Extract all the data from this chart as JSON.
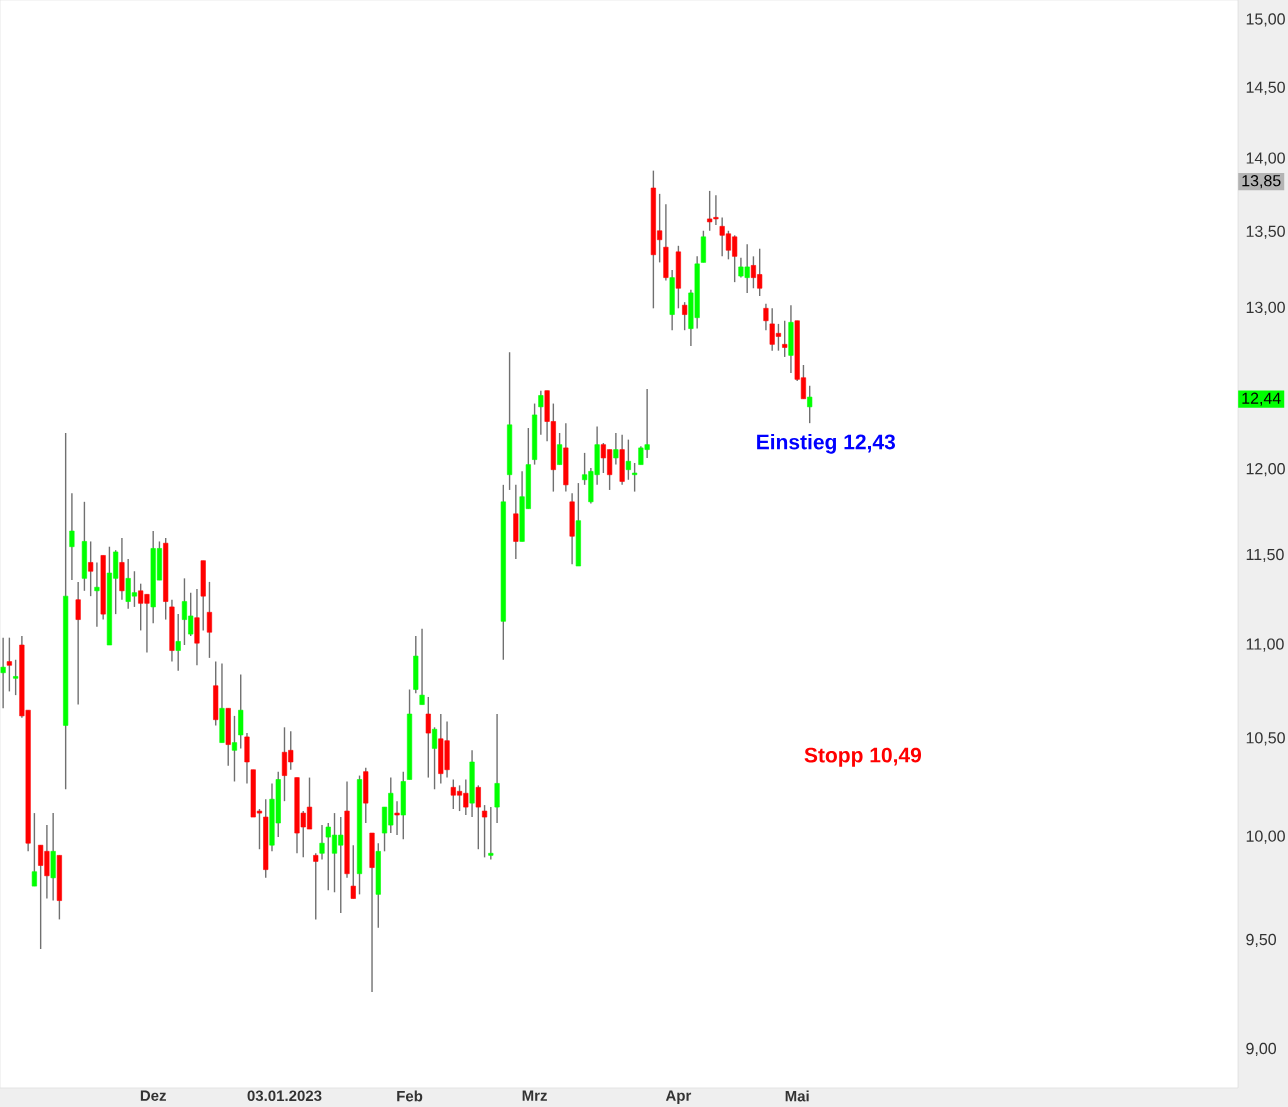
{
  "chart_data": {
    "type": "candlestick",
    "categories": [
      null,
      null,
      null,
      null,
      null,
      null,
      null,
      null,
      null,
      null,
      null,
      null,
      null,
      null,
      null,
      null,
      null,
      null,
      null,
      null,
      null,
      null,
      null,
      null,
      "Dez",
      null,
      null,
      null,
      null,
      null,
      null,
      null,
      null,
      null,
      null,
      null,
      null,
      null,
      null,
      null,
      null,
      null,
      null,
      null,
      null,
      "03.01.2023",
      null,
      null,
      null,
      null,
      null,
      null,
      null,
      null,
      null,
      null,
      null,
      null,
      null,
      null,
      null,
      null,
      null,
      null,
      null,
      "Feb",
      null,
      null,
      null,
      null,
      null,
      null,
      null,
      null,
      null,
      null,
      null,
      null,
      null,
      null,
      null,
      null,
      null,
      null,
      null,
      "Mrz",
      null,
      null,
      null,
      null,
      null,
      null,
      null,
      null,
      null,
      null,
      null,
      null,
      null,
      null,
      null,
      null,
      null,
      null,
      null,
      null,
      null,
      null,
      "Apr",
      null,
      null,
      null,
      null,
      null,
      null,
      null,
      null,
      null,
      null,
      null,
      null,
      null,
      null,
      null,
      null,
      null,
      null,
      "Mai",
      null,
      null,
      null,
      null,
      null,
      null,
      null,
      null,
      null,
      null,
      null,
      null,
      null,
      null,
      null,
      null,
      null,
      null,
      null,
      null,
      null,
      null,
      null,
      null,
      null,
      null,
      null,
      null,
      null,
      null,
      null,
      null,
      null,
      null,
      null,
      null,
      null,
      null,
      null,
      null,
      null,
      null,
      null,
      null,
      null,
      null,
      null,
      null,
      null,
      null,
      null,
      null,
      null,
      null,
      null,
      null,
      null,
      null,
      null,
      null,
      null,
      null,
      null,
      null,
      null,
      null,
      null,
      null,
      null,
      null
    ],
    "ohlc": [
      [
        10.85,
        11.04,
        10.66,
        10.88
      ],
      [
        10.91,
        11.04,
        10.75,
        10.89
      ],
      [
        10.82,
        10.92,
        10.73,
        10.83
      ],
      [
        11.0,
        11.05,
        10.61,
        10.62
      ],
      [
        10.65,
        10.65,
        9.93,
        9.97
      ],
      [
        9.76,
        10.12,
        9.76,
        9.83
      ],
      [
        9.96,
        9.96,
        9.46,
        9.86
      ],
      [
        9.93,
        10.06,
        9.7,
        9.81
      ],
      [
        9.8,
        10.12,
        9.69,
        9.93
      ],
      [
        9.91,
        9.91,
        9.6,
        9.69
      ],
      [
        10.57,
        12.22,
        10.24,
        11.27
      ],
      [
        11.55,
        11.86,
        11.36,
        11.64
      ],
      [
        11.25,
        11.35,
        10.68,
        11.14
      ],
      [
        11.37,
        11.81,
        11.3,
        11.58
      ],
      [
        11.46,
        11.58,
        11.27,
        11.41
      ],
      [
        11.3,
        11.46,
        11.1,
        11.32
      ],
      [
        11.5,
        11.5,
        11.14,
        11.17
      ],
      [
        11.0,
        11.55,
        11.0,
        11.4
      ],
      [
        11.37,
        11.53,
        11.17,
        11.52
      ],
      [
        11.46,
        11.6,
        11.25,
        11.3
      ],
      [
        11.24,
        11.48,
        11.2,
        11.37
      ],
      [
        11.27,
        11.41,
        11.21,
        11.29
      ],
      [
        11.3,
        11.34,
        11.08,
        11.23
      ],
      [
        11.28,
        11.28,
        10.96,
        11.23
      ],
      [
        11.21,
        11.64,
        11.12,
        11.54
      ],
      [
        11.36,
        11.58,
        11.36,
        11.54
      ],
      [
        11.57,
        11.6,
        11.14,
        11.24
      ],
      [
        11.21,
        11.25,
        10.91,
        10.97
      ],
      [
        10.97,
        11.17,
        10.86,
        11.02
      ],
      [
        11.14,
        11.37,
        11.0,
        11.24
      ],
      [
        11.06,
        11.29,
        11.05,
        11.16
      ],
      [
        11.15,
        11.31,
        10.89,
        11.01
      ],
      [
        11.47,
        11.47,
        11.08,
        11.27
      ],
      [
        11.18,
        11.35,
        10.93,
        11.07
      ],
      [
        10.78,
        10.91,
        10.57,
        10.6
      ],
      [
        10.48,
        10.9,
        10.48,
        10.66
      ],
      [
        10.66,
        10.66,
        10.36,
        10.47
      ],
      [
        10.44,
        10.62,
        10.28,
        10.48
      ],
      [
        10.52,
        10.84,
        10.45,
        10.65
      ],
      [
        10.51,
        10.53,
        10.27,
        10.38
      ],
      [
        10.34,
        10.34,
        10.1,
        10.1
      ],
      [
        10.13,
        10.14,
        9.94,
        10.12
      ],
      [
        10.1,
        10.19,
        9.8,
        9.84
      ],
      [
        9.96,
        10.27,
        9.93,
        10.19
      ],
      [
        10.07,
        10.33,
        10.0,
        10.29
      ],
      [
        10.43,
        10.56,
        10.18,
        10.31
      ],
      [
        10.44,
        10.54,
        10.34,
        10.38
      ],
      [
        10.3,
        10.3,
        9.92,
        10.02
      ],
      [
        10.12,
        10.13,
        9.9,
        10.05
      ],
      [
        10.15,
        10.3,
        10.04,
        10.04
      ],
      [
        9.91,
        9.92,
        9.6,
        9.88
      ],
      [
        9.92,
        10.06,
        9.89,
        9.97
      ],
      [
        10.0,
        10.07,
        9.74,
        10.05
      ],
      [
        9.92,
        10.12,
        9.73,
        10.01
      ],
      [
        9.96,
        10.1,
        9.63,
        10.01
      ],
      [
        10.13,
        10.28,
        9.8,
        9.82
      ],
      [
        9.76,
        9.96,
        9.7,
        9.7
      ],
      [
        9.82,
        10.31,
        9.72,
        10.29
      ],
      [
        10.33,
        10.35,
        10.07,
        10.17
      ],
      [
        10.02,
        10.02,
        9.26,
        9.85
      ],
      [
        9.72,
        9.97,
        9.56,
        9.93
      ],
      [
        10.02,
        10.15,
        9.93,
        10.15
      ],
      [
        10.06,
        10.3,
        10.02,
        10.22
      ],
      [
        10.12,
        10.18,
        10.01,
        10.11
      ],
      [
        10.11,
        10.33,
        9.99,
        10.28
      ],
      [
        10.29,
        10.76,
        10.29,
        10.63
      ],
      [
        10.76,
        11.05,
        10.74,
        10.94
      ],
      [
        10.68,
        11.09,
        10.68,
        10.73
      ],
      [
        10.63,
        10.72,
        10.3,
        10.53
      ],
      [
        10.45,
        10.56,
        10.24,
        10.55
      ],
      [
        10.5,
        10.63,
        10.27,
        10.32
      ],
      [
        10.49,
        10.59,
        10.3,
        10.34
      ],
      [
        10.25,
        10.29,
        10.14,
        10.21
      ],
      [
        10.23,
        10.26,
        10.13,
        10.21
      ],
      [
        10.22,
        10.29,
        10.11,
        10.15
      ],
      [
        10.17,
        10.44,
        10.1,
        10.38
      ],
      [
        10.25,
        10.26,
        9.94,
        10.15
      ],
      [
        10.13,
        10.16,
        9.9,
        10.1
      ],
      [
        9.91,
        10.15,
        9.89,
        9.92
      ],
      [
        10.15,
        10.63,
        10.07,
        10.27
      ],
      [
        11.13,
        11.91,
        10.92,
        11.81
      ],
      [
        11.97,
        12.72,
        11.88,
        12.27
      ],
      [
        11.74,
        11.91,
        11.48,
        11.58
      ],
      [
        11.58,
        11.99,
        11.58,
        11.84
      ],
      [
        11.77,
        12.25,
        11.77,
        12.03
      ],
      [
        12.06,
        12.4,
        12.03,
        12.33
      ],
      [
        12.38,
        12.48,
        12.21,
        12.45
      ],
      [
        12.48,
        12.48,
        12.17,
        12.29
      ],
      [
        12.29,
        12.4,
        11.87,
        12.0
      ],
      [
        12.03,
        12.22,
        12.03,
        12.15
      ],
      [
        12.13,
        12.28,
        11.87,
        11.91
      ],
      [
        11.81,
        11.86,
        11.45,
        11.61
      ],
      [
        11.44,
        11.92,
        11.44,
        11.7
      ],
      [
        11.94,
        12.1,
        11.91,
        11.97
      ],
      [
        11.81,
        12.01,
        11.8,
        11.99
      ],
      [
        11.97,
        12.26,
        11.91,
        12.15
      ],
      [
        12.15,
        12.16,
        11.98,
        12.07
      ],
      [
        12.12,
        12.12,
        11.88,
        11.97
      ],
      [
        12.07,
        12.22,
        12.03,
        12.12
      ],
      [
        12.12,
        12.21,
        11.91,
        11.93
      ],
      [
        12.0,
        12.18,
        11.94,
        12.05
      ],
      [
        11.97,
        12.04,
        11.87,
        11.98
      ],
      [
        12.03,
        12.14,
        12.03,
        12.13
      ],
      [
        12.12,
        12.49,
        12.07,
        12.15
      ],
      [
        13.8,
        13.92,
        13.0,
        13.35
      ],
      [
        13.51,
        13.76,
        13.3,
        13.45
      ],
      [
        13.4,
        13.69,
        13.18,
        13.2
      ],
      [
        12.96,
        13.25,
        12.86,
        13.2
      ],
      [
        13.37,
        13.41,
        13.0,
        13.13
      ],
      [
        13.02,
        13.04,
        12.86,
        12.96
      ],
      [
        12.87,
        13.12,
        12.76,
        13.1
      ],
      [
        12.94,
        13.34,
        12.87,
        13.29
      ],
      [
        13.3,
        13.51,
        13.3,
        13.47
      ],
      [
        13.59,
        13.78,
        13.51,
        13.57
      ],
      [
        13.6,
        13.75,
        13.55,
        13.59
      ],
      [
        13.54,
        13.6,
        13.34,
        13.48
      ],
      [
        13.49,
        13.51,
        13.32,
        13.38
      ],
      [
        13.47,
        13.48,
        13.17,
        13.34
      ],
      [
        13.21,
        13.33,
        13.2,
        13.27
      ],
      [
        13.2,
        13.42,
        13.1,
        13.27
      ],
      [
        13.28,
        13.34,
        13.13,
        13.2
      ],
      [
        13.22,
        13.39,
        13.08,
        13.13
      ],
      [
        13.0,
        13.03,
        12.86,
        12.92
      ],
      [
        12.9,
        13.0,
        12.73,
        12.77
      ],
      [
        12.84,
        12.9,
        12.73,
        12.82
      ],
      [
        12.77,
        12.92,
        12.69,
        12.75
      ],
      [
        12.7,
        13.02,
        12.59,
        12.91
      ],
      [
        12.92,
        12.92,
        12.54,
        12.55
      ],
      [
        12.56,
        12.64,
        12.43,
        12.43
      ],
      [
        12.38,
        12.51,
        12.28,
        12.44
      ],
      null,
      null,
      null,
      null,
      null,
      null,
      null,
      null,
      null,
      null,
      null,
      null,
      null,
      null,
      null,
      null,
      null,
      null,
      null,
      null,
      null,
      null,
      null,
      null,
      null,
      null,
      null,
      null,
      null,
      null,
      null,
      null,
      null,
      null,
      null,
      null,
      null,
      null,
      null,
      null,
      null,
      null,
      null,
      null,
      null,
      null,
      null,
      null,
      null,
      null,
      null,
      null,
      null,
      null,
      null,
      null,
      null,
      null,
      null,
      null,
      null,
      null,
      null,
      null,
      null,
      null,
      null,
      null
    ],
    "colors": [
      "#00ff00",
      "#ff0000",
      "#00ff00",
      "#ff0000",
      "#ff0000",
      "#00ff00",
      "#ff0000",
      "#ff0000",
      "#00ff00",
      "#ff0000",
      "#00ff00",
      "#00ff00",
      "#ff0000",
      "#00ff00",
      "#ff0000",
      "#00ff00",
      "#ff0000",
      "#00ff00",
      "#00ff00",
      "#ff0000",
      "#00ff00",
      "#00ff00",
      "#ff0000",
      "#ff0000",
      "#00ff00",
      "#00ff00",
      "#ff0000",
      "#ff0000",
      "#00ff00",
      "#00ff00",
      "#00ff00",
      "#ff0000",
      "#ff0000",
      "#ff0000",
      "#ff0000",
      "#00ff00",
      "#ff0000",
      "#00ff00",
      "#00ff00",
      "#ff0000",
      "#ff0000",
      "#ff0000",
      "#ff0000",
      "#00ff00",
      "#00ff00",
      "#ff0000",
      "#ff0000",
      "#ff0000",
      "#ff0000",
      "#ff0000",
      "#ff0000",
      "#00ff00",
      "#00ff00",
      "#00ff00",
      "#00ff00",
      "#ff0000",
      "#ff0000",
      "#00ff00",
      "#ff0000",
      "#ff0000",
      "#00ff00",
      "#00ff00",
      "#00ff00",
      "#ff0000",
      "#00ff00",
      "#00ff00",
      "#00ff00",
      "#00ff00",
      "#ff0000",
      "#00ff00",
      "#ff0000",
      "#ff0000",
      "#ff0000",
      "#ff0000",
      "#ff0000",
      "#00ff00",
      "#ff0000",
      "#ff0000",
      "#00ff00",
      "#00ff00",
      "#00ff00",
      "#00ff00",
      "#ff0000",
      "#00ff00",
      "#00ff00",
      "#00ff00",
      "#00ff00",
      "#ff0000",
      "#ff0000",
      "#00ff00",
      "#ff0000",
      "#ff0000",
      "#00ff00",
      "#00ff00",
      "#00ff00",
      "#00ff00",
      "#ff0000",
      "#ff0000",
      "#00ff00",
      "#ff0000",
      "#00ff00",
      "#00ff00",
      "#00ff00",
      "#00ff00",
      "#ff0000",
      "#ff0000",
      "#ff0000",
      "#00ff00",
      "#ff0000",
      "#ff0000",
      "#00ff00",
      "#00ff00",
      "#00ff00",
      "#ff0000",
      "#ff0000",
      "#ff0000",
      "#ff0000",
      "#ff0000",
      "#00ff00",
      "#00ff00",
      "#ff0000",
      "#ff0000",
      "#ff0000",
      "#ff0000",
      "#ff0000",
      "#ff0000",
      "#00ff00",
      "#ff0000",
      "#ff0000",
      "#00ff00",
      null,
      null,
      null,
      null,
      null,
      null,
      null,
      null,
      null,
      null,
      null,
      null,
      null,
      null,
      null,
      null,
      null,
      null,
      null,
      null,
      null,
      null,
      null,
      null,
      null,
      null,
      null,
      null,
      null,
      null,
      null,
      null,
      null,
      null,
      null,
      null,
      null,
      null,
      null,
      null,
      null,
      null,
      null,
      null,
      null,
      null,
      null,
      null,
      null,
      null,
      null,
      null,
      null,
      null,
      null,
      null,
      null,
      null,
      null,
      null,
      null,
      null,
      null,
      null,
      null,
      null,
      null,
      null
    ],
    "log": true,
    "ylim": [
      8.83,
      15.15
    ],
    "yticks": [
      {
        "value": 9,
        "label": "9,00"
      },
      {
        "value": 9.5,
        "label": "9,50"
      },
      {
        "value": 10,
        "label": "10,00"
      },
      {
        "value": 10.5,
        "label": "10,50"
      },
      {
        "value": 11,
        "label": "11,00"
      },
      {
        "value": 11.5,
        "label": "11,50"
      },
      {
        "value": 12,
        "label": "12,00"
      },
      {
        "value": 13,
        "label": "13,00"
      },
      {
        "value": 13.5,
        "label": "13,50"
      },
      {
        "value": 14,
        "label": "14,00"
      },
      {
        "value": 14.5,
        "label": "14,50"
      },
      {
        "value": 15,
        "label": "15,00"
      }
    ],
    "annotations": [
      "Einstieg 12,43",
      "Stopp 10,49",
      "13,85",
      "12,44"
    ]
  }
}
